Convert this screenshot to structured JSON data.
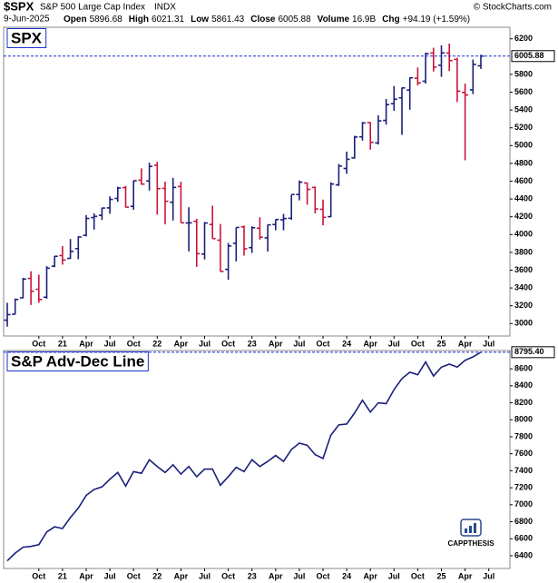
{
  "header": {
    "symbol": "$SPX",
    "name": "S&P 500 Large Cap Index",
    "exchange": "INDX",
    "date": "9-Jun-2025",
    "labels": [
      "Open",
      "High",
      "Low",
      "Close",
      "Volume",
      "Chg"
    ],
    "volume": "16.9B",
    "change": "+94.19 (+1.59%)",
    "source": "© StockCharts.com",
    "brand": "CAPPTHESIS"
  },
  "chart_data": [
    {
      "type": "ohlc",
      "label": "SPX",
      "categories": [
        null,
        null,
        null,
        null,
        "Oct",
        null,
        null,
        "21",
        null,
        null,
        "Apr",
        null,
        null,
        "Jul",
        null,
        null,
        "Oct",
        null,
        null,
        "22",
        null,
        null,
        "Apr",
        null,
        null,
        "Jul",
        null,
        null,
        "Oct",
        null,
        null,
        "23",
        null,
        null,
        "Apr",
        null,
        null,
        "Jul",
        null,
        null,
        "Oct",
        null,
        null,
        "24",
        null,
        null,
        "Apr",
        null,
        null,
        "Jul",
        null,
        null,
        "Oct",
        null,
        null,
        "25",
        null,
        null,
        "Apr",
        null,
        null,
        "Jul"
      ],
      "open": [
        3038,
        3105,
        3289,
        3507,
        3385,
        3296,
        3645,
        3764,
        3732,
        3842,
        3992,
        4191,
        4216,
        4300,
        4406,
        4528,
        4317,
        4611,
        4602,
        4778,
        4519,
        4363,
        4540,
        4130,
        4149,
        3781,
        4113,
        3937,
        3609,
        3902,
        4087,
        3853,
        4071,
        3963,
        4113,
        4166,
        4183,
        4450,
        4579,
        4530,
        4284,
        4201,
        4559,
        4743,
        4862,
        5098,
        5258,
        5030,
        5283,
        5471,
        5537,
        5624,
        5758,
        5723,
        6040,
        5903,
        6041,
        5969,
        5597,
        5626,
        5896.68,
        null
      ],
      "high": [
        3233,
        3280,
        3514,
        3588,
        3549,
        3646,
        3760,
        3870,
        3950,
        3981,
        4218,
        4238,
        4302,
        4430,
        4538,
        4546,
        4608,
        4744,
        4808,
        4819,
        4595,
        4637,
        4594,
        4307,
        4177,
        4141,
        4325,
        4119,
        3906,
        4080,
        4101,
        4094,
        4195,
        4110,
        4170,
        4232,
        4448,
        4607,
        4584,
        4541,
        4393,
        4587,
        4794,
        4932,
        5111,
        5265,
        5264,
        5342,
        5524,
        5670,
        5651,
        5768,
        5878,
        6044,
        6100,
        6128,
        6147,
        5987,
        5696,
        5968,
        6021.31,
        null
      ],
      "low": [
        2965,
        3101,
        3284,
        3209,
        3233,
        3279,
        3633,
        3662,
        3725,
        3723,
        3980,
        4056,
        4165,
        4233,
        4368,
        4305,
        4279,
        4560,
        4495,
        4223,
        4115,
        4158,
        4132,
        3811,
        3637,
        3721,
        3955,
        3585,
        3492,
        3698,
        3764,
        3794,
        3943,
        3809,
        4049,
        4048,
        4167,
        4385,
        4335,
        4238,
        4104,
        4197,
        4546,
        4682,
        4853,
        5056,
        4954,
        5012,
        5235,
        5391,
        5120,
        5403,
        5675,
        5697,
        5832,
        5773,
        5837,
        5489,
        4835,
        5579,
        5861.43,
        null
      ],
      "close": [
        3100,
        3271,
        3500,
        3363,
        3270,
        3622,
        3756,
        3714,
        3811,
        3973,
        4181,
        4204,
        4298,
        4395,
        4523,
        4308,
        4605,
        4567,
        4766,
        4516,
        4374,
        4530,
        4132,
        4132,
        3785,
        4130,
        3955,
        3586,
        3872,
        4080,
        3840,
        4077,
        3970,
        4109,
        4169,
        4180,
        4450,
        4589,
        4508,
        4288,
        4194,
        4568,
        4770,
        4846,
        5096,
        5254,
        5036,
        5278,
        5460,
        5522,
        5648,
        5762,
        5705,
        6032,
        5882,
        6041,
        5955,
        5612,
        5569,
        5912,
        6005.88,
        null
      ],
      "up_color": "#1a1f7a",
      "down_color": "#c8143c",
      "ylim": [
        2860,
        6330
      ],
      "yticks": [
        3000,
        3200,
        3400,
        3600,
        3800,
        4000,
        4200,
        4400,
        4600,
        4800,
        5000,
        5200,
        5400,
        5600,
        5800,
        6200
      ],
      "grid": false
    },
    {
      "type": "line",
      "label": "S&P Adv-Dec Line",
      "categories": [
        null,
        null,
        null,
        null,
        "Oct",
        null,
        null,
        "21",
        null,
        null,
        "Apr",
        null,
        null,
        "Jul",
        null,
        null,
        "Oct",
        null,
        null,
        "22",
        null,
        null,
        "Apr",
        null,
        null,
        "Jul",
        null,
        null,
        "Oct",
        null,
        null,
        "23",
        null,
        null,
        "Apr",
        null,
        null,
        "Jul",
        null,
        null,
        "Oct",
        null,
        null,
        "24",
        null,
        null,
        "Apr",
        null,
        null,
        "Jul",
        null,
        null,
        "Oct",
        null,
        null,
        "25",
        null,
        null,
        "Apr",
        null,
        null,
        "Jul"
      ],
      "values": [
        6340,
        6430,
        6500,
        6510,
        6530,
        6680,
        6740,
        6720,
        6850,
        6960,
        7110,
        7180,
        7210,
        7300,
        7380,
        7220,
        7390,
        7370,
        7530,
        7450,
        7380,
        7470,
        7360,
        7450,
        7330,
        7420,
        7420,
        7230,
        7330,
        7440,
        7390,
        7530,
        7450,
        7510,
        7580,
        7510,
        7650,
        7725,
        7700,
        7590,
        7545,
        7820,
        7940,
        7950,
        8080,
        8230,
        8090,
        8200,
        8190,
        8355,
        8485,
        8560,
        8530,
        8680,
        8515,
        8620,
        8655,
        8620,
        8700,
        8740,
        8795.4,
        null
      ],
      "value_labels": [
        null,
        null,
        null,
        null,
        null,
        null,
        null,
        null,
        null,
        null,
        null,
        null,
        null,
        null,
        null,
        null,
        null,
        null,
        null,
        null,
        null,
        null,
        null,
        null,
        null,
        null,
        null,
        null,
        null,
        null,
        null,
        null,
        null,
        null,
        null,
        null,
        null,
        null,
        null,
        null,
        null,
        null,
        null,
        null,
        null,
        null,
        null,
        null,
        null,
        null,
        null,
        null,
        null,
        null,
        null,
        null,
        null,
        null,
        null,
        null,
        "8795.40",
        null
      ],
      "color": "#1a1f7a",
      "ylim": [
        6250,
        8815
      ],
      "yticks": [
        6400,
        6600,
        6800,
        7000,
        7200,
        7400,
        7600,
        7800,
        8000,
        8200,
        8400,
        8600
      ],
      "grid": false
    }
  ]
}
